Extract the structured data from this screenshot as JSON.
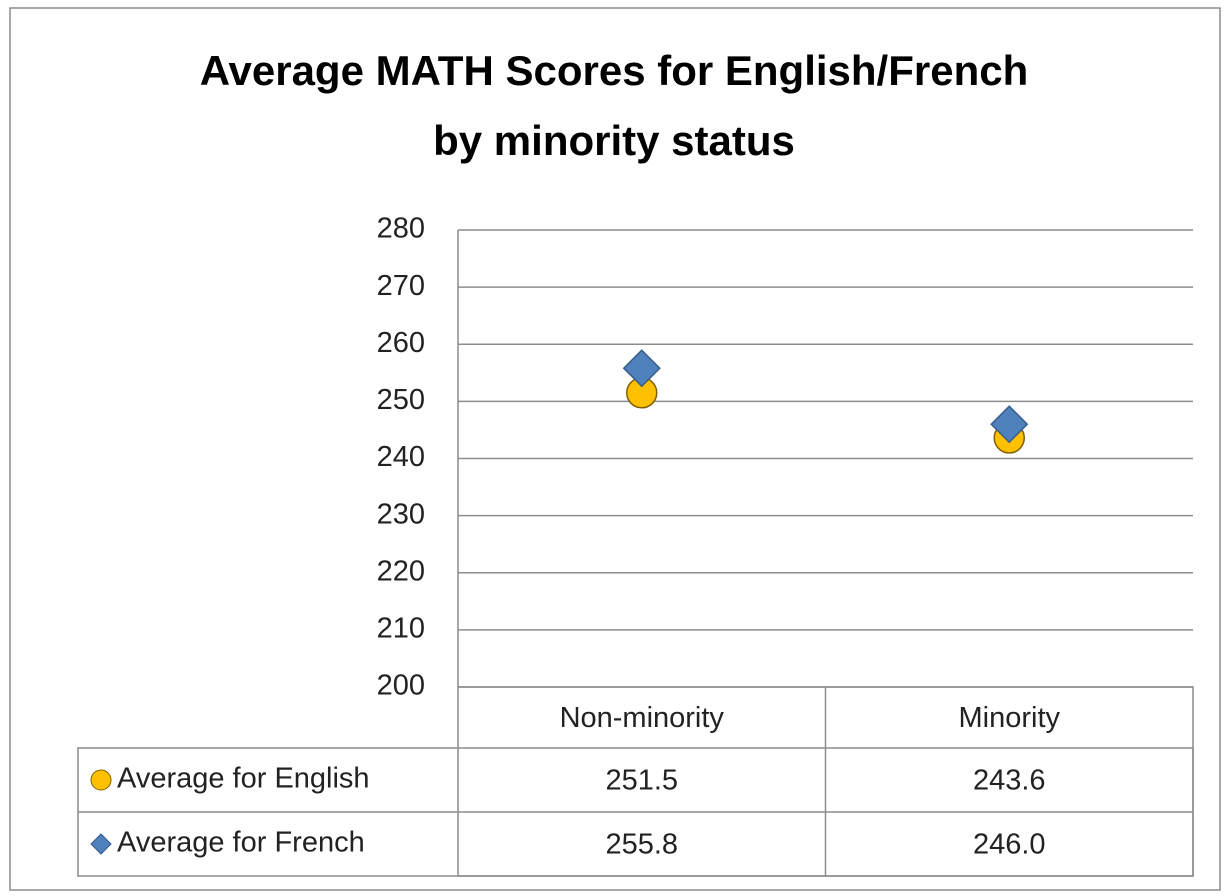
{
  "chart_data": {
    "type": "line",
    "show_lines": false,
    "title": "Average MATH Scores for English/French by minority status",
    "categories": [
      "Non-minority",
      "Minority"
    ],
    "series": [
      {
        "name": "Average for English",
        "color": "#ffc000",
        "marker": "circle",
        "values": [
          251.5,
          243.6
        ]
      },
      {
        "name": "Average for French",
        "color": "#4f81bd",
        "marker": "diamond",
        "values": [
          255.8,
          246.0
        ],
        "value_labels": [
          "255.8",
          "246.0"
        ]
      }
    ],
    "ylim": [
      200,
      280
    ],
    "yticks": [
      200,
      210,
      220,
      230,
      240,
      250,
      260,
      270,
      280
    ],
    "grid": true,
    "data_table": true
  }
}
